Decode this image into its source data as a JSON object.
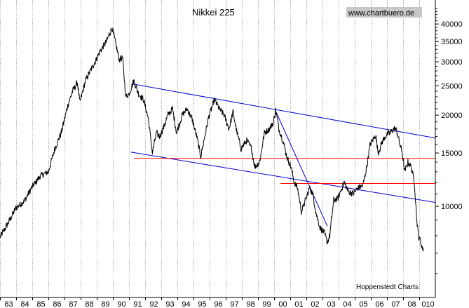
{
  "chart_data": {
    "type": "line",
    "title": "Nikkei 225",
    "watermark": "www.chartbuero.de",
    "credit": "Hoppenstedt Charts",
    "y_scale": "log",
    "ylim": [
      5000,
      48000
    ],
    "xlim": [
      1983.0,
      2010.0
    ],
    "grid": "dotted-vertical",
    "y_ticks": [
      10000,
      15000,
      20000,
      25000,
      30000,
      35000,
      40000
    ],
    "y_tick_labels": [
      "10000",
      "15000",
      "20000",
      "25000",
      "30000",
      "35000",
      "40000"
    ],
    "x_ticks": [
      1983,
      1984,
      1985,
      1986,
      1987,
      1988,
      1989,
      1990,
      1991,
      1992,
      1993,
      1994,
      1995,
      1996,
      1997,
      1998,
      1999,
      2000,
      2001,
      2002,
      2003,
      2004,
      2005,
      2006,
      2007,
      2008,
      2009
    ],
    "x_tick_labels": [
      "83",
      "84",
      "85",
      "86",
      "87",
      "88",
      "89",
      "90",
      "91",
      "92",
      "93",
      "94",
      "95",
      "96",
      "97",
      "98",
      "99",
      "00",
      "01",
      "02",
      "03",
      "04",
      "05",
      "06",
      "07",
      "08",
      "010"
    ],
    "series": [
      {
        "color": "#000000",
        "points": [
          [
            1983.0,
            7900
          ],
          [
            1983.5,
            8800
          ],
          [
            1984.0,
            9900
          ],
          [
            1984.5,
            10400
          ],
          [
            1985.0,
            11600
          ],
          [
            1985.5,
            12600
          ],
          [
            1986.0,
            13000
          ],
          [
            1986.4,
            15500
          ],
          [
            1986.8,
            17500
          ],
          [
            1987.2,
            21500
          ],
          [
            1987.5,
            24000
          ],
          [
            1987.8,
            25700
          ],
          [
            1987.95,
            22000
          ],
          [
            1988.3,
            26000
          ],
          [
            1988.6,
            28000
          ],
          [
            1988.9,
            30000
          ],
          [
            1989.2,
            32500
          ],
          [
            1989.6,
            35000
          ],
          [
            1989.95,
            38900
          ],
          [
            1990.2,
            34000
          ],
          [
            1990.4,
            30500
          ],
          [
            1990.6,
            31000
          ],
          [
            1990.8,
            23000
          ],
          [
            1991.0,
            23500
          ],
          [
            1991.3,
            26000
          ],
          [
            1991.6,
            23500
          ],
          [
            1991.9,
            22500
          ],
          [
            1992.2,
            19500
          ],
          [
            1992.45,
            15000
          ],
          [
            1992.7,
            17500
          ],
          [
            1992.9,
            17000
          ],
          [
            1993.2,
            18500
          ],
          [
            1993.4,
            20000
          ],
          [
            1993.7,
            21000
          ],
          [
            1993.95,
            17500
          ],
          [
            1994.3,
            20000
          ],
          [
            1994.6,
            21000
          ],
          [
            1994.9,
            19500
          ],
          [
            1995.2,
            17000
          ],
          [
            1995.45,
            14600
          ],
          [
            1995.7,
            17000
          ],
          [
            1995.95,
            19800
          ],
          [
            1996.3,
            22500
          ],
          [
            1996.6,
            21000
          ],
          [
            1996.9,
            20000
          ],
          [
            1997.2,
            18000
          ],
          [
            1997.45,
            20500
          ],
          [
            1997.7,
            17500
          ],
          [
            1997.95,
            15500
          ],
          [
            1998.3,
            16500
          ],
          [
            1998.6,
            15500
          ],
          [
            1998.8,
            13500
          ],
          [
            1999.1,
            14000
          ],
          [
            1999.4,
            17500
          ],
          [
            1999.7,
            18000
          ],
          [
            1999.95,
            18900
          ],
          [
            2000.1,
            20800
          ],
          [
            2000.3,
            18000
          ],
          [
            2000.55,
            16500
          ],
          [
            2000.8,
            14500
          ],
          [
            2001.05,
            13500
          ],
          [
            2001.25,
            12000
          ],
          [
            2001.45,
            11500
          ],
          [
            2001.7,
            9600
          ],
          [
            2001.95,
            10500
          ],
          [
            2002.2,
            11500
          ],
          [
            2002.4,
            11000
          ],
          [
            2002.6,
            9500
          ],
          [
            2002.85,
            8500
          ],
          [
            2003.1,
            8200
          ],
          [
            2003.3,
            7600
          ],
          [
            2003.45,
            8000
          ],
          [
            2003.7,
            10500
          ],
          [
            2003.95,
            10600
          ],
          [
            2004.2,
            11500
          ],
          [
            2004.35,
            12000
          ],
          [
            2004.6,
            11200
          ],
          [
            2004.9,
            11000
          ],
          [
            2005.2,
            11500
          ],
          [
            2005.5,
            11700
          ],
          [
            2005.75,
            13500
          ],
          [
            2005.95,
            16000
          ],
          [
            2006.3,
            17200
          ],
          [
            2006.45,
            15000
          ],
          [
            2006.7,
            16300
          ],
          [
            2006.95,
            17200
          ],
          [
            2007.2,
            17500
          ],
          [
            2007.45,
            18100
          ],
          [
            2007.6,
            17800
          ],
          [
            2007.8,
            16000
          ],
          [
            2007.95,
            15000
          ],
          [
            2008.1,
            13000
          ],
          [
            2008.3,
            14000
          ],
          [
            2008.5,
            13500
          ],
          [
            2008.7,
            12000
          ],
          [
            2008.85,
            9000
          ],
          [
            2008.95,
            8000
          ],
          [
            2009.1,
            7600
          ],
          [
            2009.25,
            7100
          ]
        ]
      }
    ],
    "trendlines": [
      {
        "color": "#0000cc",
        "from": [
          1991.3,
          25300
        ],
        "to": [
          2010.0,
          16800
        ]
      },
      {
        "color": "#0000cc",
        "from": [
          1991.1,
          15100
        ],
        "to": [
          2010.0,
          10300
        ]
      },
      {
        "color": "#0000cc",
        "from": [
          2000.05,
          20900
        ],
        "to": [
          2003.3,
          8600
        ]
      },
      {
        "color": "#ff0000",
        "from": [
          1991.3,
          14400
        ],
        "to": [
          2010.0,
          14400
        ]
      },
      {
        "color": "#ff0000",
        "from": [
          2000.4,
          11900
        ],
        "to": [
          2010.0,
          11900
        ]
      }
    ]
  }
}
